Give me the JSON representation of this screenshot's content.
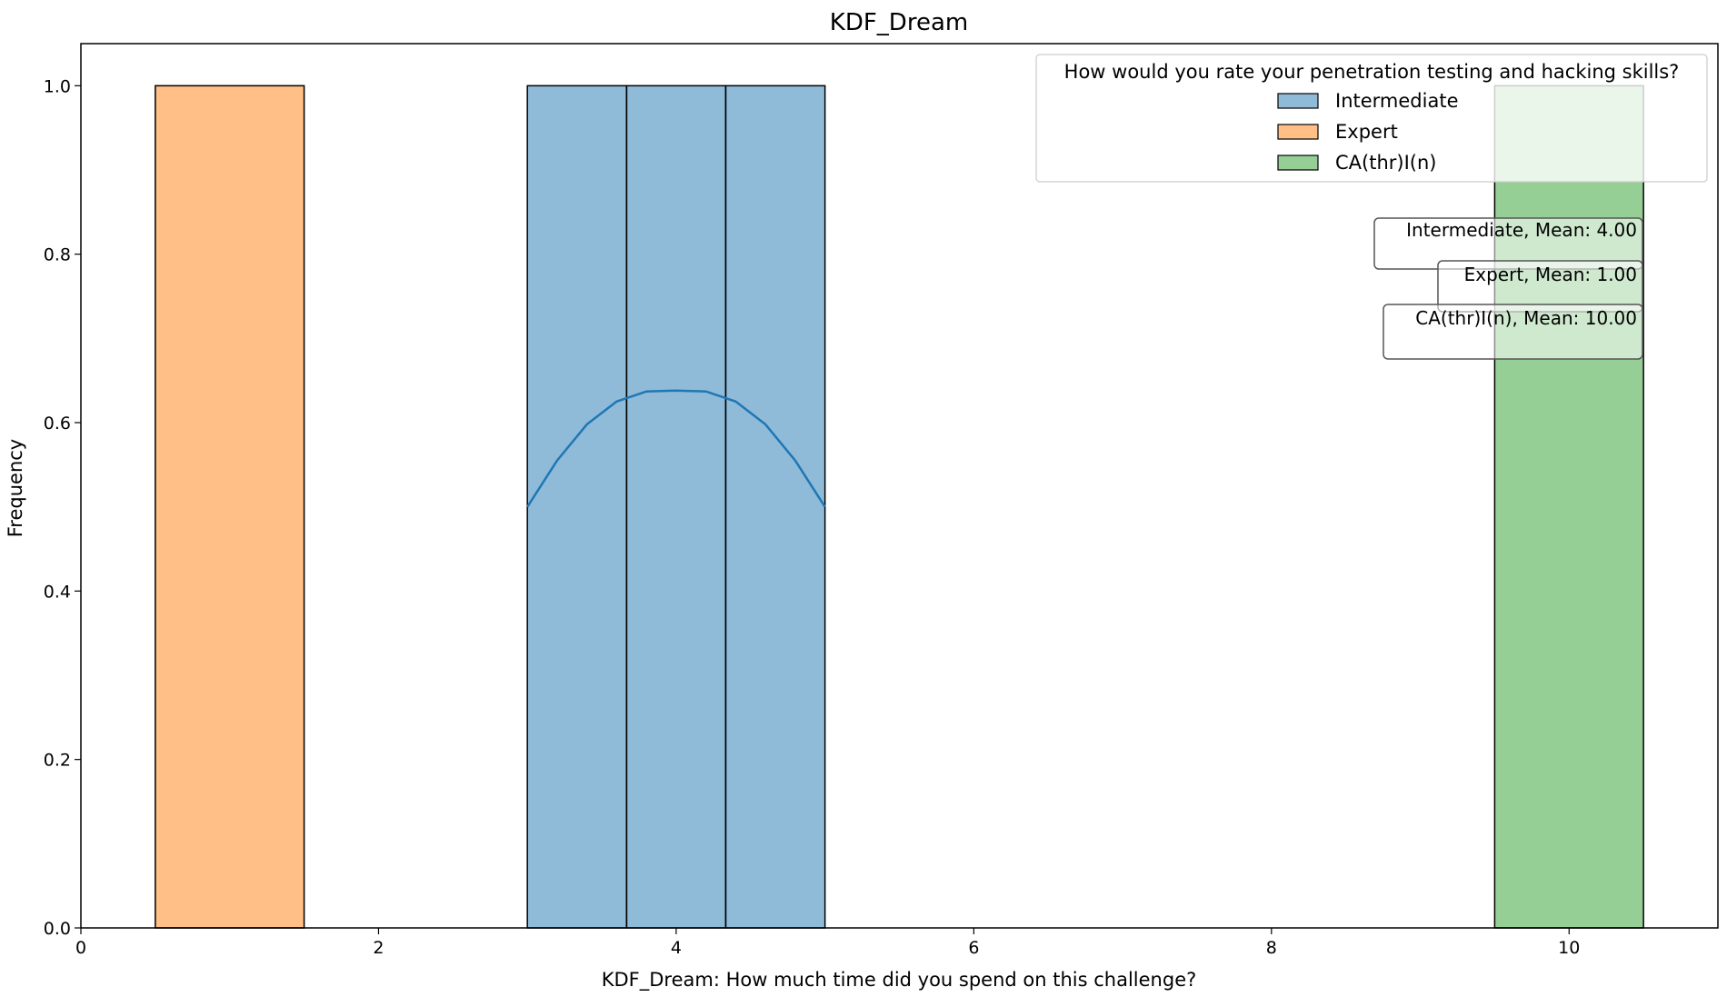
{
  "chart_data": {
    "type": "bar",
    "title": "KDF_Dream",
    "xlabel": "KDF_Dream: How much time did you spend on this challenge?",
    "ylabel": "Frequency",
    "xlim": [
      0,
      11
    ],
    "ylim": [
      0,
      1.05
    ],
    "xticks": [
      0,
      2,
      4,
      6,
      8,
      10
    ],
    "yticks": [
      0.0,
      0.2,
      0.4,
      0.6,
      0.8,
      1.0
    ],
    "xtick_labels": [
      "0",
      "2",
      "4",
      "6",
      "8",
      "10"
    ],
    "ytick_labels": [
      "0.0",
      "0.2",
      "0.4",
      "0.6",
      "0.8",
      "1.0"
    ],
    "grid": false,
    "legend": {
      "title": "How would you rate your penetration testing and hacking skills?",
      "placement": "top-right",
      "entries": [
        "Intermediate",
        "Expert",
        "CA(thr)I(n)"
      ]
    },
    "series": [
      {
        "name": "Intermediate",
        "color": "#1f77b4",
        "bins": [
          {
            "x0": 3.0,
            "x1": 3.667,
            "value": 1
          },
          {
            "x0": 3.667,
            "x1": 4.333,
            "value": 1
          },
          {
            "x0": 4.333,
            "x1": 5.0,
            "value": 1
          }
        ],
        "kde": {
          "x": [
            3.0,
            3.2,
            3.4,
            3.6,
            3.8,
            4.0,
            4.2,
            4.4,
            4.6,
            4.8,
            5.0
          ],
          "y": [
            0.5,
            0.555,
            0.598,
            0.625,
            0.637,
            0.638,
            0.637,
            0.625,
            0.598,
            0.555,
            0.5
          ]
        }
      },
      {
        "name": "Expert",
        "color": "#ff7f0e",
        "bins": [
          {
            "x0": 0.5,
            "x1": 1.5,
            "value": 1
          }
        ]
      },
      {
        "name": "CA(thr)I(n)",
        "color": "#2ca02c",
        "bins": [
          {
            "x0": 9.5,
            "x1": 10.5,
            "value": 1
          }
        ]
      }
    ],
    "annotations": [
      "Intermediate, Mean: 4.00",
      "Expert, Mean: 1.00",
      "CA(thr)I(n), Mean: 10.00"
    ]
  }
}
